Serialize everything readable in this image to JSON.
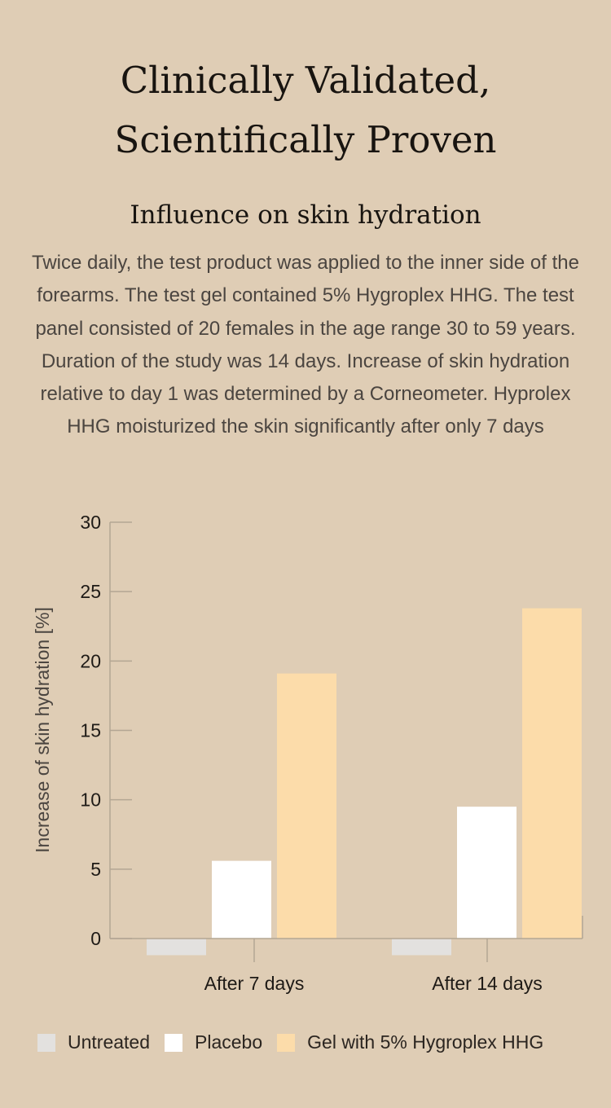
{
  "page": {
    "title_lines": [
      "Clinically Validated,",
      "Scientifically Proven"
    ],
    "subtitle": "Influence on skin hydration",
    "description": "Twice daily, the test product was applied to the inner side of the forearms. The test gel contained 5% Hygroplex HHG. The test panel consisted of 20 females in the age range 30 to 59 years. Duration of the study was 14 days. Increase of skin hydration relative to day 1 was determined by a Corneometer. Hyprolex HHG moisturized the skin significantly after only 7 days"
  },
  "colors": {
    "background": "#dfcdb5",
    "untreated": "#e3e1df",
    "placebo": "#ffffff",
    "gel": "#fcdcaa",
    "axis": "#b3a693",
    "tick_text": "#1e1a16"
  },
  "chart_data": {
    "type": "bar",
    "categories": [
      "After 7 days",
      "After 14 days"
    ],
    "series": [
      {
        "name": "Untreated",
        "values": [
          -1.2,
          -1.2
        ]
      },
      {
        "name": "Placebo",
        "values": [
          5.6,
          9.5
        ]
      },
      {
        "name": "Gel with 5% Hygroplex HHG",
        "values": [
          19.1,
          23.8
        ]
      }
    ],
    "ylabel": "Increase of skin hydration [%]",
    "xlabel": "",
    "ylim": [
      0,
      30
    ],
    "yticks": [
      0,
      5,
      10,
      15,
      20,
      25,
      30
    ],
    "grid": false,
    "legend_position": "bottom"
  }
}
